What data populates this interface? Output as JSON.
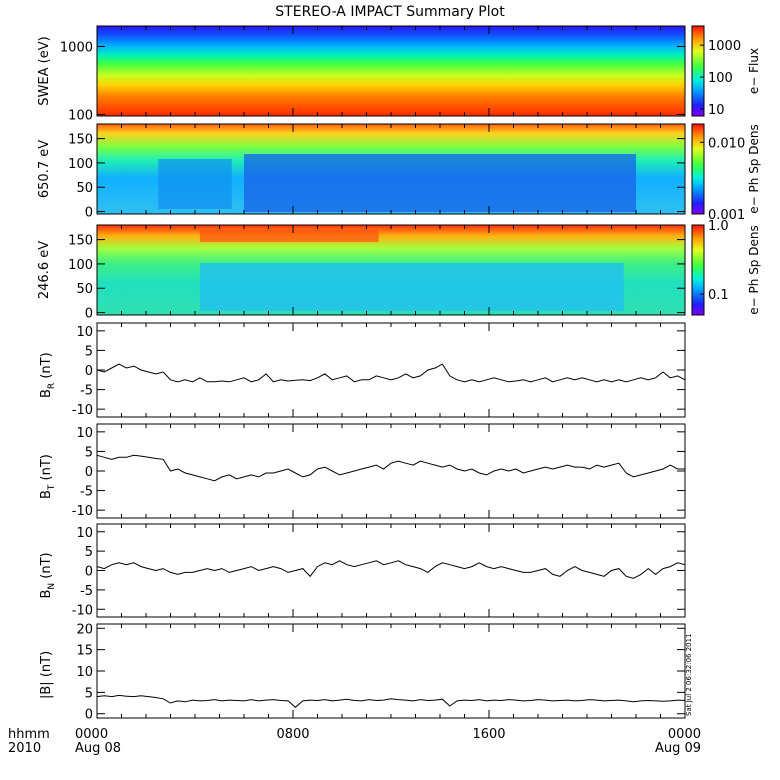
{
  "title": "STEREO-A IMPACT Summary Plot",
  "timestamp_text": "Sat Jul  2 06:32:06 2011",
  "x_axis": {
    "label_line1": "hhmm",
    "label_line2": "2010",
    "ticks": [
      {
        "hours": 0,
        "line1": "0000",
        "line2": "Aug 08"
      },
      {
        "hours": 8,
        "line1": "0800",
        "line2": ""
      },
      {
        "hours": 16,
        "line1": "1600",
        "line2": ""
      },
      {
        "hours": 24,
        "line1": "0000",
        "line2": "Aug 09"
      }
    ],
    "range_hours": [
      0,
      24
    ],
    "minor_tick_hours": 1
  },
  "chart_data": [
    {
      "type": "heatmap",
      "ylabel": "SWEA (eV)",
      "yscale": "log",
      "ylim": [
        95,
        2000
      ],
      "yticks": [
        {
          "v": 100,
          "label": "100"
        },
        {
          "v": 1000,
          "label": "1000"
        }
      ],
      "colorbar": {
        "label": "e− Flux",
        "scale": "log",
        "range": [
          6,
          4000
        ],
        "ticks": [
          {
            "v": 10,
            "label": "10"
          },
          {
            "v": 100,
            "label": "100"
          },
          {
            "v": 1000,
            "label": "1000"
          }
        ]
      }
    },
    {
      "type": "heatmap",
      "ylabel": "650.7 eV",
      "yscale": "linear",
      "ylim": [
        -5,
        180
      ],
      "yticks": [
        {
          "v": 0,
          "label": "0"
        },
        {
          "v": 50,
          "label": "50"
        },
        {
          "v": 100,
          "label": "100"
        },
        {
          "v": 150,
          "label": "150"
        }
      ],
      "colorbar": {
        "label": "e− Ph Sp Dens",
        "scale": "log",
        "range": [
          0.001,
          0.018
        ],
        "ticks": [
          {
            "v": 0.001,
            "label": "0.001"
          },
          {
            "v": 0.01,
            "label": "0.010"
          }
        ]
      }
    },
    {
      "type": "heatmap",
      "ylabel": "246.6 eV",
      "yscale": "linear",
      "ylim": [
        -5,
        180
      ],
      "yticks": [
        {
          "v": 0,
          "label": "0"
        },
        {
          "v": 50,
          "label": "50"
        },
        {
          "v": 100,
          "label": "100"
        },
        {
          "v": 150,
          "label": "150"
        }
      ],
      "colorbar": {
        "label": "e− Ph Sp Dens",
        "scale": "log",
        "range": [
          0.05,
          1.0
        ],
        "ticks": [
          {
            "v": 0.1,
            "label": "0.1"
          },
          {
            "v": 1.0,
            "label": "1.0"
          }
        ]
      }
    },
    {
      "type": "line",
      "ylabel_main": "B",
      "ylabel_sub": "R",
      "ylabel_unit": "(nT)",
      "ylim": [
        -12,
        12
      ],
      "yticks": [
        -10,
        -5,
        0,
        5,
        10
      ],
      "x": [
        0,
        0.3,
        0.6,
        0.9,
        1.2,
        1.5,
        1.8,
        2.1,
        2.4,
        2.7,
        3.0,
        3.3,
        3.6,
        3.9,
        4.2,
        4.5,
        4.8,
        5.1,
        5.4,
        5.7,
        6.0,
        6.3,
        6.6,
        6.9,
        7.2,
        7.5,
        7.8,
        8.1,
        8.4,
        8.7,
        9.0,
        9.3,
        9.6,
        9.9,
        10.2,
        10.5,
        10.8,
        11.1,
        11.4,
        11.7,
        12.0,
        12.3,
        12.6,
        12.9,
        13.2,
        13.5,
        13.8,
        14.1,
        14.4,
        14.7,
        15.0,
        15.3,
        15.6,
        15.9,
        16.2,
        16.5,
        16.8,
        17.1,
        17.4,
        17.7,
        18.0,
        18.3,
        18.6,
        18.9,
        19.2,
        19.5,
        19.8,
        20.1,
        20.4,
        20.7,
        21.0,
        21.3,
        21.6,
        21.9,
        22.2,
        22.5,
        22.8,
        23.1,
        23.4,
        23.7,
        24.0
      ],
      "y": [
        0,
        -0.5,
        0.5,
        1.5,
        0.5,
        1.0,
        0,
        -0.5,
        -1.0,
        -0.5,
        -2.5,
        -3.0,
        -2.5,
        -3.0,
        -2.0,
        -3.0,
        -3.0,
        -2.8,
        -3.0,
        -2.5,
        -2.0,
        -3.0,
        -2.5,
        -1.0,
        -3.0,
        -2.5,
        -2.8,
        -2.6,
        -2.5,
        -2.7,
        -2.0,
        -1.0,
        -2.5,
        -2.0,
        -1.5,
        -3.0,
        -2.5,
        -2.5,
        -1.5,
        -2.0,
        -2.5,
        -2.0,
        -1.0,
        -2.0,
        -1.5,
        0,
        0.5,
        1.5,
        -1.5,
        -2.5,
        -3.0,
        -2.5,
        -3.0,
        -2.5,
        -2.0,
        -2.5,
        -3.0,
        -2.8,
        -2.5,
        -3.0,
        -2.5,
        -2.0,
        -3.0,
        -2.5,
        -2.0,
        -2.5,
        -2.0,
        -2.5,
        -3.0,
        -2.5,
        -3.0,
        -2.5,
        -3.0,
        -2.5,
        -2.0,
        -2.5,
        -2.0,
        -0.5,
        -2.0,
        -1.5,
        -2.5
      ]
    },
    {
      "type": "line",
      "ylabel_main": "B",
      "ylabel_sub": "T",
      "ylabel_unit": "(nT)",
      "ylim": [
        -12,
        12
      ],
      "yticks": [
        -10,
        -5,
        0,
        5,
        10
      ],
      "x": [
        0,
        0.3,
        0.6,
        0.9,
        1.2,
        1.5,
        1.8,
        2.1,
        2.4,
        2.7,
        3.0,
        3.3,
        3.6,
        3.9,
        4.2,
        4.5,
        4.8,
        5.1,
        5.4,
        5.7,
        6.0,
        6.3,
        6.6,
        6.9,
        7.2,
        7.5,
        7.8,
        8.1,
        8.4,
        8.7,
        9.0,
        9.3,
        9.6,
        9.9,
        10.2,
        10.5,
        10.8,
        11.1,
        11.4,
        11.7,
        12.0,
        12.3,
        12.6,
        12.9,
        13.2,
        13.5,
        13.8,
        14.1,
        14.4,
        14.7,
        15.0,
        15.3,
        15.6,
        15.9,
        16.2,
        16.5,
        16.8,
        17.1,
        17.4,
        17.7,
        18.0,
        18.3,
        18.6,
        18.9,
        19.2,
        19.5,
        19.8,
        20.1,
        20.4,
        20.7,
        21.0,
        21.3,
        21.6,
        21.9,
        22.2,
        22.5,
        22.8,
        23.1,
        23.4,
        23.7,
        24.0
      ],
      "y": [
        4.0,
        3.5,
        3.0,
        3.5,
        3.5,
        4.0,
        3.8,
        3.5,
        3.2,
        3.0,
        0,
        0.5,
        -0.5,
        -1.0,
        -1.5,
        -2.0,
        -2.5,
        -1.5,
        -1.0,
        -2.0,
        -1.5,
        -1.0,
        -1.5,
        -0.5,
        -0.5,
        0,
        0.5,
        -0.5,
        -1.5,
        -1.0,
        0.5,
        1.0,
        0,
        -1.0,
        -0.5,
        0,
        0.5,
        1.0,
        1.5,
        0.5,
        2.0,
        2.5,
        2.0,
        1.5,
        2.5,
        2.0,
        1.5,
        1.0,
        1.5,
        0.5,
        0,
        0.5,
        -0.5,
        -1.0,
        0,
        0.5,
        0,
        0.5,
        -0.5,
        0,
        0.5,
        1.0,
        0.5,
        1.0,
        1.5,
        1.0,
        1.0,
        0.5,
        1.5,
        1.0,
        1.5,
        2.0,
        -0.5,
        -1.5,
        -1.0,
        -0.5,
        0,
        0.5,
        1.5,
        0.5,
        0.5
      ]
    },
    {
      "type": "line",
      "ylabel_main": "B",
      "ylabel_sub": "N",
      "ylabel_unit": "(nT)",
      "ylim": [
        -12,
        12
      ],
      "yticks": [
        -10,
        -5,
        0,
        5,
        10
      ],
      "x": [
        0,
        0.3,
        0.6,
        0.9,
        1.2,
        1.5,
        1.8,
        2.1,
        2.4,
        2.7,
        3.0,
        3.3,
        3.6,
        3.9,
        4.2,
        4.5,
        4.8,
        5.1,
        5.4,
        5.7,
        6.0,
        6.3,
        6.6,
        6.9,
        7.2,
        7.5,
        7.8,
        8.1,
        8.4,
        8.7,
        9.0,
        9.3,
        9.6,
        9.9,
        10.2,
        10.5,
        10.8,
        11.1,
        11.4,
        11.7,
        12.0,
        12.3,
        12.6,
        12.9,
        13.2,
        13.5,
        13.8,
        14.1,
        14.4,
        14.7,
        15.0,
        15.3,
        15.6,
        15.9,
        16.2,
        16.5,
        16.8,
        17.1,
        17.4,
        17.7,
        18.0,
        18.3,
        18.6,
        18.9,
        19.2,
        19.5,
        19.8,
        20.1,
        20.4,
        20.7,
        21.0,
        21.3,
        21.6,
        21.9,
        22.2,
        22.5,
        22.8,
        23.1,
        23.4,
        23.7,
        24.0
      ],
      "y": [
        1.0,
        0.5,
        1.5,
        2.0,
        1.5,
        2.0,
        1.0,
        0.5,
        0,
        0.5,
        -0.5,
        -1.0,
        -0.5,
        -0.5,
        0,
        0.5,
        0,
        0.5,
        -0.5,
        0,
        0.5,
        1.0,
        0,
        0.5,
        1.0,
        0.5,
        -0.5,
        0,
        0.5,
        -1.5,
        1.0,
        2.0,
        1.5,
        2.5,
        1.5,
        1.0,
        1.5,
        2.0,
        2.5,
        1.5,
        2.0,
        2.5,
        1.5,
        1.0,
        0.5,
        -0.5,
        1.0,
        2.0,
        1.5,
        1.0,
        0.5,
        1.0,
        2.0,
        1.0,
        0.5,
        1.0,
        0.5,
        0,
        -0.5,
        -0.5,
        0,
        0.5,
        -1.0,
        -1.5,
        0,
        1.0,
        0,
        -0.5,
        -1.0,
        -1.5,
        0,
        0.5,
        -1.5,
        -2.0,
        -1.0,
        0.5,
        -1.0,
        0.5,
        1.0,
        2.0,
        1.5
      ]
    },
    {
      "type": "line",
      "ylabel_main": "|B|",
      "ylabel_sub": "",
      "ylabel_unit": "(nT)",
      "ylim": [
        -1,
        21
      ],
      "yticks": [
        0,
        5,
        10,
        15,
        20
      ],
      "x": [
        0,
        0.3,
        0.6,
        0.9,
        1.2,
        1.5,
        1.8,
        2.1,
        2.4,
        2.7,
        3.0,
        3.3,
        3.6,
        3.9,
        4.2,
        4.5,
        4.8,
        5.1,
        5.4,
        5.7,
        6.0,
        6.3,
        6.6,
        6.9,
        7.2,
        7.5,
        7.8,
        8.1,
        8.4,
        8.7,
        9.0,
        9.3,
        9.6,
        9.9,
        10.2,
        10.5,
        10.8,
        11.1,
        11.4,
        11.7,
        12.0,
        12.3,
        12.6,
        12.9,
        13.2,
        13.5,
        13.8,
        14.1,
        14.4,
        14.7,
        15.0,
        15.3,
        15.6,
        15.9,
        16.2,
        16.5,
        16.8,
        17.1,
        17.4,
        17.7,
        18.0,
        18.3,
        18.6,
        18.9,
        19.2,
        19.5,
        19.8,
        20.1,
        20.4,
        20.7,
        21.0,
        21.3,
        21.6,
        21.9,
        22.2,
        22.5,
        22.8,
        23.1,
        23.4,
        23.7,
        24.0
      ],
      "y": [
        4.0,
        4.2,
        4.0,
        4.3,
        4.1,
        4.0,
        4.2,
        4.0,
        3.8,
        3.5,
        2.5,
        3.0,
        2.8,
        3.2,
        3.0,
        3.1,
        3.3,
        3.0,
        3.2,
        3.1,
        3.0,
        3.3,
        3.0,
        3.2,
        3.3,
        3.1,
        3.0,
        1.5,
        3.0,
        3.2,
        3.1,
        3.3,
        3.0,
        3.2,
        3.4,
        3.1,
        3.0,
        3.3,
        3.1,
        3.2,
        3.5,
        3.3,
        3.2,
        3.0,
        3.3,
        3.1,
        3.2,
        3.4,
        1.8,
        3.0,
        3.2,
        3.1,
        3.3,
        3.0,
        3.2,
        3.1,
        3.3,
        3.2,
        3.0,
        3.1,
        3.3,
        3.2,
        3.0,
        3.1,
        3.2,
        3.0,
        3.1,
        3.3,
        3.2,
        3.0,
        3.1,
        3.2,
        3.0,
        2.8,
        3.0,
        3.1,
        3.0,
        2.9,
        3.0,
        3.2,
        3.1
      ]
    }
  ]
}
